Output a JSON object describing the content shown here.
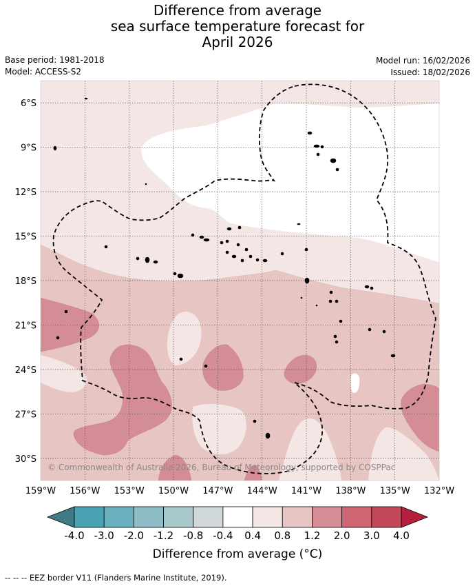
{
  "title_lines": [
    "Difference from average",
    "sea surface temperature forecast for",
    "April 2026"
  ],
  "base_period": "Base period: 1981-2018",
  "model": "Model: ACCESS-S2",
  "model_run": "Model run: 16/02/2026",
  "issued": "Issued: 18/02/2026",
  "copyright": "© Commonwealth of Australia 2026, Bureau of Meteorology, supported by COSPPac",
  "lat_labels": [
    "6°S",
    "9°S",
    "12°S",
    "15°S",
    "18°S",
    "21°S",
    "24°S",
    "27°S",
    "30°S"
  ],
  "lon_labels": [
    "159°W",
    "156°W",
    "153°W",
    "150°W",
    "147°W",
    "144°W",
    "141°W",
    "138°W",
    "135°W",
    "132°W"
  ],
  "colorbar": {
    "labels": [
      "-4.0",
      "-3.0",
      "-2.0",
      "-1.2",
      "-0.8",
      "-0.4",
      "0.4",
      "0.8",
      "1.2",
      "2.0",
      "3.0",
      "4.0"
    ],
    "colors": [
      "#438891",
      "#4aa3b3",
      "#6ab0be",
      "#8dbcc6",
      "#a9c8cc",
      "#d0d8db",
      "#ffffff",
      "#f5e6e6",
      "#e7c5c2",
      "#d58d95",
      "#cd6573",
      "#c2485a"
    ],
    "under_color": "#3f7b86",
    "over_color": "#b51e3c",
    "title": "Difference from average (°C)"
  },
  "map_colors": {
    "pale": "#f5e6e6",
    "light": "#e7c5c2",
    "mid": "#d58d95",
    "white": "#ffffff"
  },
  "footnote": "--  --  -- EEZ border V11 (Flanders Marine Institute, 2019)."
}
